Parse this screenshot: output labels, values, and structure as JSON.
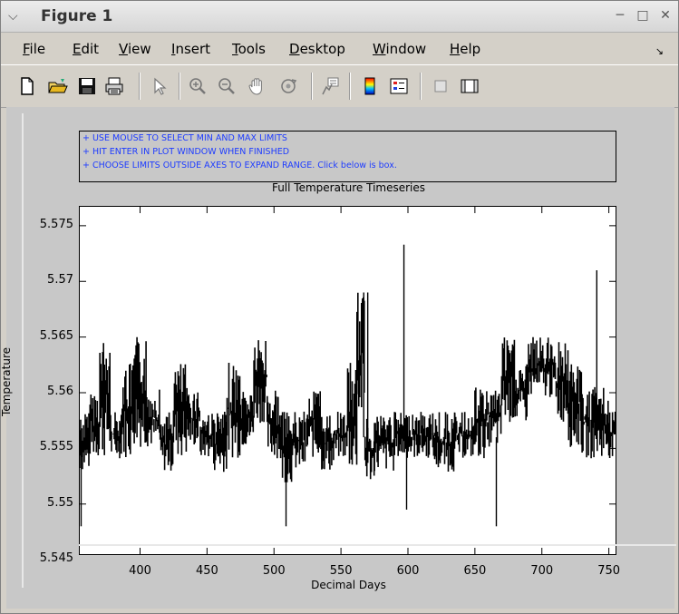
{
  "window": {
    "title": "Figure 1"
  },
  "menu": [
    {
      "key": "F",
      "rest": "ile"
    },
    {
      "key": "E",
      "rest": "dit"
    },
    {
      "key": "V",
      "rest": "iew"
    },
    {
      "key": "I",
      "rest": "nsert"
    },
    {
      "key": "T",
      "rest": "ools"
    },
    {
      "key": "D",
      "rest": "esktop"
    },
    {
      "key": "W",
      "rest": "indow"
    },
    {
      "key": "H",
      "rest": "elp"
    }
  ],
  "toolbar": {
    "icons": [
      "new-file-icon",
      "open-folder-icon",
      "save-icon",
      "print-icon",
      "pointer-icon",
      "zoom-in-icon",
      "zoom-out-icon",
      "pan-hand-icon",
      "rotate-3d-icon",
      "data-cursor-icon",
      "colorbar-icon",
      "legend-icon",
      "hide-plot-tools-icon",
      "show-plot-tools-icon"
    ]
  },
  "instructions": [
    "+ USE MOUSE TO SELECT MIN AND MAX LIMITS",
    "+ HIT ENTER IN PLOT WINDOW WHEN FINISHED",
    "+ CHOOSE LIMITS OUTSIDE AXES TO EXPAND RANGE. Click below is box."
  ],
  "chart_data": {
    "type": "line",
    "title": "Full Temperature Timeseries",
    "xlabel": "Decimal Days",
    "ylabel": "Temperature",
    "xlim": [
      355,
      755
    ],
    "ylim": [
      5.5455,
      5.5767
    ],
    "xticks": [
      400,
      450,
      500,
      550,
      600,
      650,
      700,
      750
    ],
    "yticks": [
      5.545,
      5.55,
      5.555,
      5.56,
      5.565,
      5.57,
      5.575
    ],
    "ytick_labels": [
      "5.545",
      "5.55",
      "5.555",
      "5.56",
      "5.565",
      "5.57",
      "5.575"
    ],
    "series": [
      {
        "color": "#000000",
        "segments": [
          {
            "x": [
              355,
              362
            ],
            "range": [
              5.5529,
              5.5583
            ]
          },
          {
            "x": [
              362,
              370
            ],
            "range": [
              5.5541,
              5.5605
            ]
          },
          {
            "x": [
              370,
              378
            ],
            "range": [
              5.5541,
              5.565
            ]
          },
          {
            "x": [
              378,
              386
            ],
            "range": [
              5.5541,
              5.5583
            ]
          },
          {
            "x": [
              386,
              395
            ],
            "range": [
              5.5541,
              5.5627
            ]
          },
          {
            "x": [
              395,
              405
            ],
            "range": [
              5.5551,
              5.565
            ]
          },
          {
            "x": [
              405,
              415
            ],
            "range": [
              5.5551,
              5.5605
            ]
          },
          {
            "x": [
              415,
              425
            ],
            "range": [
              5.5529,
              5.5583
            ]
          },
          {
            "x": [
              425,
              435
            ],
            "range": [
              5.5541,
              5.5627
            ]
          },
          {
            "x": [
              435,
              445
            ],
            "range": [
              5.5551,
              5.5605
            ]
          },
          {
            "x": [
              445,
              455
            ],
            "range": [
              5.5541,
              5.5583
            ]
          },
          {
            "x": [
              455,
              465
            ],
            "range": [
              5.5529,
              5.5583
            ]
          },
          {
            "x": [
              465,
              475
            ],
            "range": [
              5.5541,
              5.5627
            ]
          },
          {
            "x": [
              475,
              485
            ],
            "range": [
              5.5551,
              5.5605
            ]
          },
          {
            "x": [
              485,
              495
            ],
            "range": [
              5.5573,
              5.565
            ]
          },
          {
            "x": [
              495,
              505
            ],
            "range": [
              5.5541,
              5.5605
            ]
          },
          {
            "x": [
              505,
              515
            ],
            "range": [
              5.5519,
              5.5583
            ]
          },
          {
            "x": [
              515,
              525
            ],
            "range": [
              5.5529,
              5.5583
            ]
          },
          {
            "x": [
              525,
              535
            ],
            "range": [
              5.5541,
              5.5605
            ]
          },
          {
            "x": [
              535,
              545
            ],
            "range": [
              5.5529,
              5.5583
            ]
          },
          {
            "x": [
              545,
              555
            ],
            "range": [
              5.5541,
              5.5583
            ]
          },
          {
            "x": [
              555,
              562
            ],
            "range": [
              5.5529,
              5.5627
            ]
          },
          {
            "x": [
              562,
              568
            ],
            "range": [
              5.5573,
              5.569
            ]
          },
          {
            "x": [
              568,
              575
            ],
            "range": [
              5.5519,
              5.5583
            ]
          },
          {
            "x": [
              575,
              590
            ],
            "range": [
              5.5529,
              5.5583
            ]
          },
          {
            "x": [
              590,
              605
            ],
            "range": [
              5.5541,
              5.5583
            ]
          },
          {
            "x": [
              605,
              620
            ],
            "range": [
              5.5541,
              5.5583
            ]
          },
          {
            "x": [
              620,
              635
            ],
            "range": [
              5.5529,
              5.5583
            ]
          },
          {
            "x": [
              635,
              650
            ],
            "range": [
              5.5541,
              5.5583
            ]
          },
          {
            "x": [
              650,
              660
            ],
            "range": [
              5.5541,
              5.5605
            ]
          },
          {
            "x": [
              660,
              670
            ],
            "range": [
              5.5551,
              5.5605
            ]
          },
          {
            "x": [
              670,
              680
            ],
            "range": [
              5.5573,
              5.565
            ]
          },
          {
            "x": [
              680,
              690
            ],
            "range": [
              5.5573,
              5.5627
            ]
          },
          {
            "x": [
              690,
              700
            ],
            "range": [
              5.5595,
              5.565
            ]
          },
          {
            "x": [
              700,
              710
            ],
            "range": [
              5.5595,
              5.565
            ]
          },
          {
            "x": [
              710,
              720
            ],
            "range": [
              5.5573,
              5.565
            ]
          },
          {
            "x": [
              720,
              730
            ],
            "range": [
              5.5551,
              5.5627
            ]
          },
          {
            "x": [
              730,
              740
            ],
            "range": [
              5.5541,
              5.5605
            ]
          },
          {
            "x": [
              740,
              750
            ],
            "range": [
              5.5541,
              5.5605
            ]
          },
          {
            "x": [
              750,
              755
            ],
            "range": [
              5.5541,
              5.5583
            ]
          }
        ],
        "spikes": [
          {
            "x": 356,
            "range": [
              5.548,
              5.556
            ]
          },
          {
            "x": 509,
            "range": [
              5.548,
              5.556
            ]
          },
          {
            "x": 567,
            "range": [
              5.556,
              5.569
            ]
          },
          {
            "x": 570,
            "range": [
              5.556,
              5.569
            ]
          },
          {
            "x": 597,
            "range": [
              5.556,
              5.5733
            ]
          },
          {
            "x": 599,
            "range": [
              5.5495,
              5.556
            ]
          },
          {
            "x": 666,
            "range": [
              5.548,
              5.556
            ]
          },
          {
            "x": 741,
            "range": [
              5.556,
              5.571
            ]
          }
        ]
      }
    ]
  }
}
